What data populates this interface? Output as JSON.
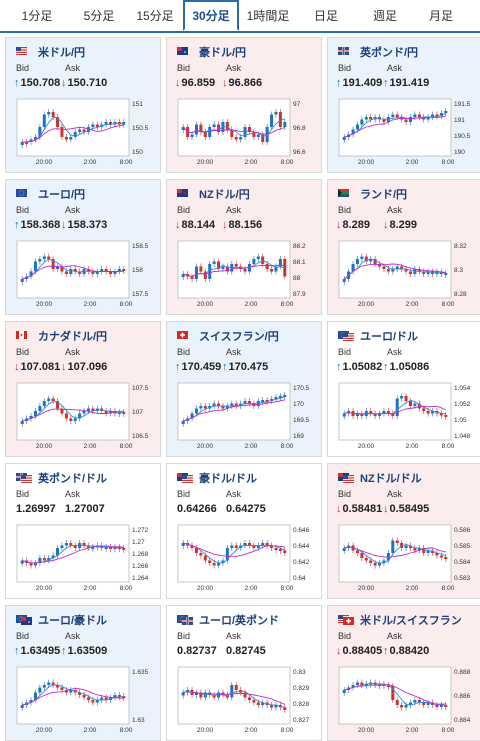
{
  "tabs": [
    {
      "label": "1分足",
      "active": false
    },
    {
      "label": "5分足",
      "active": false
    },
    {
      "label": "15分足",
      "active": false
    },
    {
      "label": "30分足",
      "active": true
    },
    {
      "label": "1時間足",
      "active": false
    },
    {
      "label": "日足",
      "active": false
    },
    {
      "label": "週足",
      "active": false
    },
    {
      "label": "月足",
      "active": false
    }
  ],
  "labels": {
    "bid": "Bid",
    "ask": "Ask"
  },
  "colors": {
    "up": "#1e73be",
    "down": "#d0312d",
    "ma1": "#2f8fd8",
    "ma2": "#c02ad2",
    "up_card": "#eaf3fb",
    "down_card": "#fbecee"
  },
  "pairs": [
    {
      "name": "米ドル/円",
      "flag": "us",
      "trend": "up",
      "bid": "150.708",
      "ask": "150.710",
      "bid_dir": "up",
      "ask_dir": "down",
      "yticks": [
        "151",
        "150.5",
        "150"
      ],
      "xticks": [
        "20:00",
        "2:00",
        "8:00"
      ],
      "shape": [
        0.2,
        0.2,
        0.25,
        0.3,
        0.5,
        0.75,
        0.8,
        0.7,
        0.5,
        0.3,
        0.25,
        0.3,
        0.4,
        0.45,
        0.4,
        0.5,
        0.55,
        0.5,
        0.55,
        0.6,
        0.55,
        0.6,
        0.55,
        0.6
      ]
    },
    {
      "name": "豪ドル/円",
      "flag": "au",
      "trend": "down",
      "bid": "96.859",
      "ask": "96.866",
      "bid_dir": "down",
      "ask_dir": "down",
      "yticks": [
        "97",
        "96.8",
        "96.6"
      ],
      "xticks": [
        "20:00",
        "2:00",
        "8:00"
      ],
      "shape": [
        0.5,
        0.3,
        0.35,
        0.55,
        0.4,
        0.3,
        0.5,
        0.55,
        0.4,
        0.6,
        0.45,
        0.3,
        0.25,
        0.3,
        0.5,
        0.4,
        0.3,
        0.35,
        0.2,
        0.5,
        0.75,
        0.8,
        0.5,
        0.6
      ]
    },
    {
      "name": "英ポンド/円",
      "flag": "gb",
      "trend": "up",
      "bid": "191.409",
      "ask": "191.419",
      "bid_dir": "up",
      "ask_dir": "up",
      "yticks": [
        "191.5",
        "191",
        "190.5",
        "190"
      ],
      "xticks": [
        "20:00",
        "2:00",
        "8:00"
      ],
      "shape": [
        0.3,
        0.35,
        0.45,
        0.55,
        0.65,
        0.7,
        0.65,
        0.7,
        0.65,
        0.6,
        0.7,
        0.75,
        0.7,
        0.65,
        0.6,
        0.7,
        0.75,
        0.7,
        0.65,
        0.7,
        0.75,
        0.72,
        0.78,
        0.82
      ]
    },
    {
      "name": "ユーロ/円",
      "flag": "eu",
      "trend": "up",
      "bid": "158.368",
      "ask": "158.373",
      "bid_dir": "up",
      "ask_dir": "down",
      "yticks": [
        "158.5",
        "158",
        "157.5"
      ],
      "xticks": [
        "20:00",
        "2:00",
        "8:00"
      ],
      "shape": [
        0.3,
        0.35,
        0.45,
        0.65,
        0.7,
        0.75,
        0.7,
        0.5,
        0.55,
        0.45,
        0.4,
        0.5,
        0.45,
        0.4,
        0.5,
        0.45,
        0.4,
        0.45,
        0.5,
        0.45,
        0.4,
        0.45,
        0.5,
        0.48
      ]
    },
    {
      "name": "NZドル/円",
      "flag": "nz",
      "trend": "down",
      "bid": "88.144",
      "ask": "88.156",
      "bid_dir": "down",
      "ask_dir": "down",
      "yticks": [
        "88.2",
        "88.1",
        "88",
        "87.9"
      ],
      "xticks": [
        "20:00",
        "2:00",
        "8:00"
      ],
      "shape": [
        0.4,
        0.35,
        0.3,
        0.55,
        0.45,
        0.3,
        0.6,
        0.65,
        0.5,
        0.55,
        0.45,
        0.6,
        0.55,
        0.5,
        0.45,
        0.6,
        0.7,
        0.75,
        0.6,
        0.5,
        0.45,
        0.55,
        0.7,
        0.35
      ]
    },
    {
      "name": "ランド/円",
      "flag": "za",
      "trend": "down",
      "bid": "8.289",
      "ask": "8.299",
      "bid_dir": "down",
      "ask_dir": "down",
      "yticks": [
        "8.32",
        "8.3",
        "8.28"
      ],
      "xticks": [
        "20:00",
        "2:00",
        "8:00"
      ],
      "shape": [
        0.3,
        0.45,
        0.6,
        0.7,
        0.75,
        0.65,
        0.7,
        0.6,
        0.55,
        0.5,
        0.45,
        0.5,
        0.55,
        0.5,
        0.45,
        0.4,
        0.5,
        0.45,
        0.4,
        0.45,
        0.4,
        0.45,
        0.4,
        0.42
      ]
    },
    {
      "name": "カナダドル/円",
      "flag": "ca",
      "trend": "down",
      "bid": "107.081",
      "ask": "107.096",
      "bid_dir": "down",
      "ask_dir": "down",
      "yticks": [
        "107.5",
        "107",
        "106.5"
      ],
      "xticks": [
        "20:00",
        "2:00",
        "8:00"
      ],
      "shape": [
        0.3,
        0.35,
        0.4,
        0.5,
        0.6,
        0.7,
        0.75,
        0.7,
        0.55,
        0.45,
        0.35,
        0.3,
        0.35,
        0.45,
        0.5,
        0.55,
        0.5,
        0.55,
        0.5,
        0.45,
        0.5,
        0.45,
        0.48,
        0.47
      ]
    },
    {
      "name": "スイスフラン/円",
      "flag": "ch",
      "trend": "up",
      "bid": "170.459",
      "ask": "170.475",
      "bid_dir": "up",
      "ask_dir": "up",
      "yticks": [
        "170.5",
        "170",
        "169.5",
        "169"
      ],
      "xticks": [
        "20:00",
        "2:00",
        "8:00"
      ],
      "shape": [
        0.3,
        0.35,
        0.45,
        0.55,
        0.6,
        0.55,
        0.6,
        0.65,
        0.6,
        0.55,
        0.6,
        0.65,
        0.6,
        0.65,
        0.7,
        0.65,
        0.6,
        0.7,
        0.72,
        0.7,
        0.74,
        0.78,
        0.8,
        0.82
      ]
    },
    {
      "name": "ユーロ/ドル",
      "flag": "eu-us",
      "trend": "flat",
      "bid": "1.05082",
      "ask": "1.05086",
      "bid_dir": "up",
      "ask_dir": "up",
      "yticks": [
        "1.054",
        "1.052",
        "1.05",
        "1.048"
      ],
      "xticks": [
        "20:00",
        "2:00",
        "8:00"
      ],
      "shape": [
        0.45,
        0.5,
        0.4,
        0.45,
        0.4,
        0.5,
        0.45,
        0.4,
        0.45,
        0.5,
        0.45,
        0.4,
        0.75,
        0.8,
        0.7,
        0.6,
        0.65,
        0.55,
        0.5,
        0.45,
        0.5,
        0.45,
        0.42,
        0.4
      ]
    },
    {
      "name": "英ポンド/ドル",
      "flag": "gb-us",
      "trend": "flat",
      "bid": "1.26997",
      "ask": "1.27007",
      "bid_dir": "none",
      "ask_dir": "none",
      "yticks": [
        "1.272",
        "1.27",
        "1.268",
        "1.266",
        "1.264"
      ],
      "xticks": [
        "20:00",
        "2:00",
        "8:00"
      ],
      "shape": [
        0.35,
        0.3,
        0.25,
        0.3,
        0.4,
        0.35,
        0.4,
        0.45,
        0.6,
        0.65,
        0.7,
        0.65,
        0.6,
        0.7,
        0.65,
        0.6,
        0.62,
        0.65,
        0.6,
        0.62,
        0.6,
        0.62,
        0.6,
        0.58
      ]
    },
    {
      "name": "豪ドル/ドル",
      "flag": "au-us",
      "trend": "flat",
      "bid": "0.64266",
      "ask": "0.64275",
      "bid_dir": "none",
      "ask_dir": "none",
      "yticks": [
        "0.646",
        "0.644",
        "0.642",
        "0.64"
      ],
      "xticks": [
        "20:00",
        "2:00",
        "8:00"
      ],
      "shape": [
        0.7,
        0.65,
        0.6,
        0.5,
        0.45,
        0.35,
        0.3,
        0.25,
        0.3,
        0.35,
        0.6,
        0.65,
        0.6,
        0.65,
        0.7,
        0.65,
        0.6,
        0.65,
        0.7,
        0.65,
        0.6,
        0.58,
        0.55,
        0.5
      ]
    },
    {
      "name": "NZドル/ドル",
      "flag": "nz-us",
      "trend": "down",
      "bid": "0.58481",
      "ask": "0.58495",
      "bid_dir": "down",
      "ask_dir": "down",
      "yticks": [
        "0.586",
        "0.585",
        "0.584",
        "0.583"
      ],
      "xticks": [
        "20:00",
        "2:00",
        "8:00"
      ],
      "shape": [
        0.6,
        0.65,
        0.55,
        0.5,
        0.4,
        0.35,
        0.3,
        0.25,
        0.3,
        0.35,
        0.5,
        0.75,
        0.7,
        0.6,
        0.65,
        0.6,
        0.55,
        0.6,
        0.5,
        0.55,
        0.5,
        0.45,
        0.42,
        0.4
      ]
    },
    {
      "name": "ユーロ/豪ドル",
      "flag": "eu-au",
      "trend": "up",
      "bid": "1.63495",
      "ask": "1.63509",
      "bid_dir": "up",
      "ask_dir": "up",
      "yticks": [
        "1.635",
        "1.63"
      ],
      "xticks": [
        "20:00",
        "2:00",
        "8:00"
      ],
      "shape": [
        0.3,
        0.35,
        0.4,
        0.55,
        0.65,
        0.7,
        0.75,
        0.7,
        0.65,
        0.6,
        0.55,
        0.6,
        0.55,
        0.5,
        0.45,
        0.4,
        0.35,
        0.4,
        0.45,
        0.4,
        0.45,
        0.5,
        0.48,
        0.45
      ]
    },
    {
      "name": "ユーロ/英ポンド",
      "flag": "eu-gb",
      "trend": "flat",
      "bid": "0.82737",
      "ask": "0.82745",
      "bid_dir": "none",
      "ask_dir": "none",
      "yticks": [
        "0.83",
        "0.829",
        "0.828",
        "0.827"
      ],
      "xticks": [
        "20:00",
        "2:00",
        "8:00"
      ],
      "shape": [
        0.55,
        0.6,
        0.5,
        0.55,
        0.45,
        0.55,
        0.5,
        0.45,
        0.55,
        0.5,
        0.45,
        0.7,
        0.6,
        0.55,
        0.45,
        0.4,
        0.35,
        0.3,
        0.35,
        0.3,
        0.25,
        0.3,
        0.25,
        0.2
      ]
    },
    {
      "name": "米ドル/スイスフラン",
      "flag": "us-ch",
      "trend": "down",
      "bid": "0.88405",
      "ask": "0.88420",
      "bid_dir": "down",
      "ask_dir": "up",
      "yticks": [
        "0.888",
        "0.886",
        "0.884"
      ],
      "xticks": [
        "20:00",
        "2:00",
        "8:00"
      ],
      "shape": [
        0.6,
        0.65,
        0.7,
        0.75,
        0.7,
        0.72,
        0.75,
        0.7,
        0.72,
        0.7,
        0.68,
        0.4,
        0.3,
        0.25,
        0.3,
        0.35,
        0.4,
        0.35,
        0.3,
        0.35,
        0.3,
        0.28,
        0.3,
        0.27
      ]
    }
  ]
}
